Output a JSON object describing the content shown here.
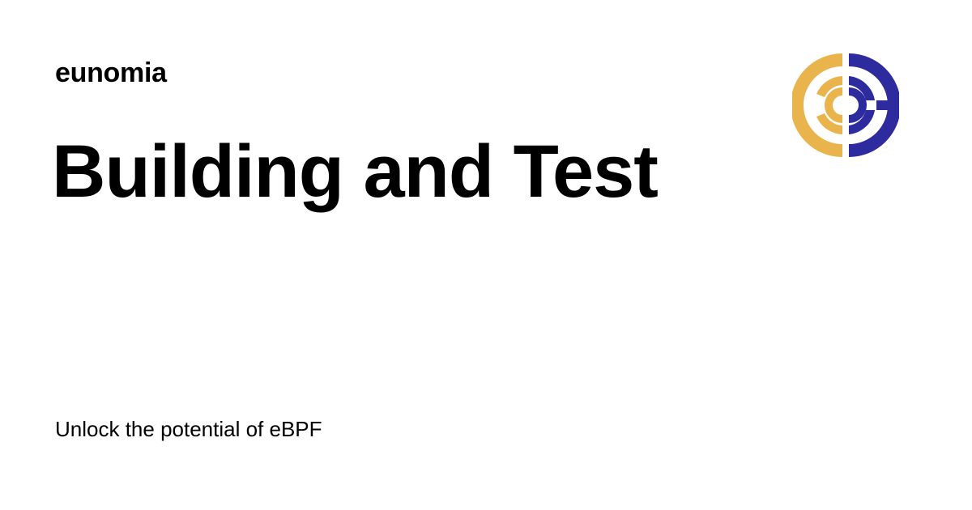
{
  "site": {
    "name": "eunomia"
  },
  "page": {
    "title": "Building and Test",
    "tagline": "Unlock the potential of eBPF"
  },
  "logo": {
    "icon": "eunomia-logo-icon",
    "colors": {
      "left": "#E9B44C",
      "right": "#2E2B9E"
    }
  }
}
